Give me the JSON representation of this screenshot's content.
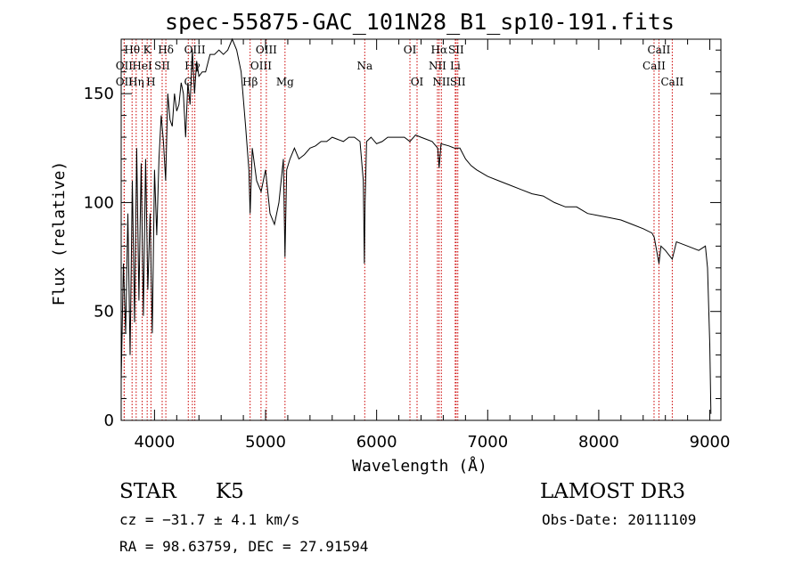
{
  "chart_data": {
    "type": "line",
    "title": "spec-55875-GAC_101N28_B1_sp10-191.fits",
    "xlabel": "Wavelength (Å)",
    "ylabel": "Flux (relative)",
    "xlim": [
      3700,
      9100
    ],
    "ylim": [
      0,
      175
    ],
    "xticks": [
      4000,
      5000,
      6000,
      7000,
      8000,
      9000
    ],
    "yticks": [
      0,
      50,
      100,
      150
    ],
    "grid": false,
    "series": [
      {
        "x": [
          3700,
          3720,
          3740,
          3760,
          3780,
          3800,
          3820,
          3840,
          3860,
          3880,
          3900,
          3920,
          3940,
          3960,
          3980,
          4000,
          4020,
          4040,
          4060,
          4080,
          4100,
          4120,
          4140,
          4160,
          4180,
          4200,
          4220,
          4240,
          4260,
          4280,
          4300,
          4320,
          4340,
          4360,
          4380,
          4400,
          4430,
          4460,
          4500,
          4540,
          4580,
          4620,
          4660,
          4700,
          4740,
          4780,
          4820,
          4850,
          4861,
          4880,
          4920,
          4960,
          5000,
          5040,
          5080,
          5120,
          5160,
          5175,
          5190,
          5220,
          5260,
          5300,
          5350,
          5400,
          5450,
          5500,
          5550,
          5600,
          5650,
          5700,
          5750,
          5800,
          5850,
          5880,
          5890,
          5896,
          5910,
          5950,
          6000,
          6050,
          6100,
          6150,
          6200,
          6250,
          6300,
          6350,
          6400,
          6450,
          6500,
          6550,
          6563,
          6580,
          6650,
          6700,
          6750,
          6800,
          6850,
          6900,
          7000,
          7100,
          7200,
          7300,
          7400,
          7500,
          7600,
          7700,
          7800,
          7900,
          8000,
          8100,
          8200,
          8300,
          8400,
          8480,
          8500,
          8542,
          8560,
          8600,
          8662,
          8700,
          8800,
          8900,
          8960,
          8980,
          9000,
          9010
        ],
        "y": [
          18,
          72,
          40,
          95,
          30,
          110,
          45,
          125,
          55,
          118,
          48,
          120,
          60,
          95,
          40,
          115,
          85,
          120,
          140,
          128,
          110,
          150,
          138,
          135,
          150,
          142,
          145,
          155,
          150,
          130,
          155,
          145,
          170,
          150,
          165,
          158,
          160,
          160,
          168,
          168,
          170,
          168,
          170,
          175,
          170,
          160,
          135,
          115,
          95,
          125,
          110,
          105,
          115,
          95,
          90,
          100,
          120,
          75,
          115,
          120,
          125,
          120,
          122,
          125,
          126,
          128,
          128,
          130,
          129,
          128,
          130,
          130,
          128,
          110,
          72,
          100,
          128,
          130,
          127,
          128,
          130,
          130,
          130,
          130,
          128,
          131,
          130,
          129,
          128,
          125,
          116,
          127,
          126,
          125,
          125,
          120,
          117,
          115,
          112,
          110,
          108,
          106,
          104,
          103,
          100,
          98,
          98,
          95,
          94,
          93,
          92,
          90,
          88,
          86,
          84,
          72,
          80,
          78,
          74,
          82,
          80,
          78,
          80,
          70,
          35,
          3
        ]
      }
    ],
    "line_markers": [
      {
        "label": "Hθ",
        "x": 3798,
        "row": 0
      },
      {
        "label": "OII",
        "x": 3727,
        "row": 1
      },
      {
        "label": "OII",
        "x": 3727,
        "row": 2
      },
      {
        "label": "K",
        "x": 3934,
        "row": 0
      },
      {
        "label": "HeI",
        "x": 3889,
        "row": 1
      },
      {
        "label": "Hη",
        "x": 3835,
        "row": 2
      },
      {
        "label": "SII",
        "x": 4069,
        "row": 1
      },
      {
        "label": "H",
        "x": 3968,
        "row": 2
      },
      {
        "label": "Hδ",
        "x": 4102,
        "row": 0
      },
      {
        "label": "OIII",
        "x": 4363,
        "row": 0
      },
      {
        "label": "Hγ",
        "x": 4341,
        "row": 1
      },
      {
        "label": "G",
        "x": 4304,
        "row": 2
      },
      {
        "label": "OIII",
        "x": 5007,
        "row": 0
      },
      {
        "label": "OIII",
        "x": 4959,
        "row": 1
      },
      {
        "label": "Hβ",
        "x": 4861,
        "row": 2
      },
      {
        "label": "Mg",
        "x": 5175,
        "row": 2
      },
      {
        "label": "Na",
        "x": 5893,
        "row": 1
      },
      {
        "label": "OI",
        "x": 6300,
        "row": 0
      },
      {
        "label": "OI",
        "x": 6364,
        "row": 2
      },
      {
        "label": "Hα",
        "x": 6563,
        "row": 0
      },
      {
        "label": "SII",
        "x": 6716,
        "row": 0
      },
      {
        "label": "NII",
        "x": 6548,
        "row": 1
      },
      {
        "label": "Li",
        "x": 6708,
        "row": 1
      },
      {
        "label": "NII",
        "x": 6583,
        "row": 2
      },
      {
        "label": "SII",
        "x": 6731,
        "row": 2
      },
      {
        "label": "CaII",
        "x": 8542,
        "row": 0
      },
      {
        "label": "CaII",
        "x": 8498,
        "row": 1
      },
      {
        "label": "CaII",
        "x": 8662,
        "row": 2
      }
    ]
  },
  "info": {
    "object_class": "STAR",
    "subclass": "K5",
    "survey": "LAMOST DR3",
    "velocity": "cz = −31.7 ± 4.1 km/s",
    "obs_date": "Obs-Date: 20111109",
    "coords": "RA =  98.63759, DEC =  27.91594"
  },
  "colors": {
    "line": "#000000",
    "marker": "#cc0000",
    "axis": "#000000"
  }
}
